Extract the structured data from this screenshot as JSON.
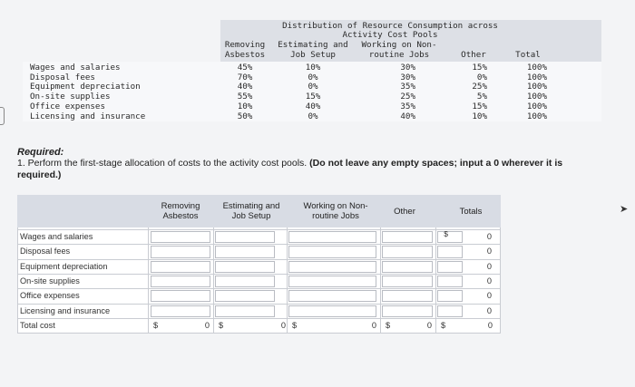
{
  "exhibit": {
    "title_line1": "Distribution of Resource Consumption across",
    "title_line2": "Activity Cost Pools",
    "col_headers": [
      [
        "Removing",
        "Asbestos"
      ],
      [
        "Estimating and",
        "Job Setup"
      ],
      [
        "Working on Non-",
        "routine Jobs"
      ],
      [
        "",
        "Other"
      ],
      [
        "",
        "Total"
      ]
    ],
    "rows": [
      {
        "label": "Wages and salaries",
        "values": [
          "45%",
          "10%",
          "30%",
          "15%",
          "100%"
        ]
      },
      {
        "label": "Disposal fees",
        "values": [
          "70%",
          "0%",
          "30%",
          "0%",
          "100%"
        ]
      },
      {
        "label": "Equipment depreciation",
        "values": [
          "40%",
          "0%",
          "35%",
          "25%",
          "100%"
        ]
      },
      {
        "label": "On-site supplies",
        "values": [
          "55%",
          "15%",
          "25%",
          "5%",
          "100%"
        ]
      },
      {
        "label": "Office expenses",
        "values": [
          "10%",
          "40%",
          "35%",
          "15%",
          "100%"
        ]
      },
      {
        "label": "Licensing and insurance",
        "values": [
          "50%",
          "0%",
          "40%",
          "10%",
          "100%"
        ]
      }
    ]
  },
  "required": {
    "label": "Required:",
    "instruction_main": "1. Perform the first-stage allocation of costs to the activity cost pools.",
    "instruction_bold": "(Do not leave any empty spaces; input a 0 wherever it is required.)"
  },
  "answer": {
    "headers": [
      "Removing Asbestos",
      "Estimating and Job Setup",
      "Working on Non-routine Jobs",
      "Other",
      "Totals"
    ],
    "rows": [
      {
        "label": "Wages and salaries",
        "total": "0"
      },
      {
        "label": "Disposal fees",
        "total": "0"
      },
      {
        "label": "Equipment depreciation",
        "total": "0"
      },
      {
        "label": "On-site supplies",
        "total": "0"
      },
      {
        "label": "Office expenses",
        "total": "0"
      },
      {
        "label": "Licensing and insurance",
        "total": "0"
      }
    ],
    "total_row": {
      "label": "Total cost",
      "currency": "$",
      "values": [
        "0",
        "0",
        "0",
        "0",
        "0"
      ]
    },
    "totals_currency": "$"
  }
}
